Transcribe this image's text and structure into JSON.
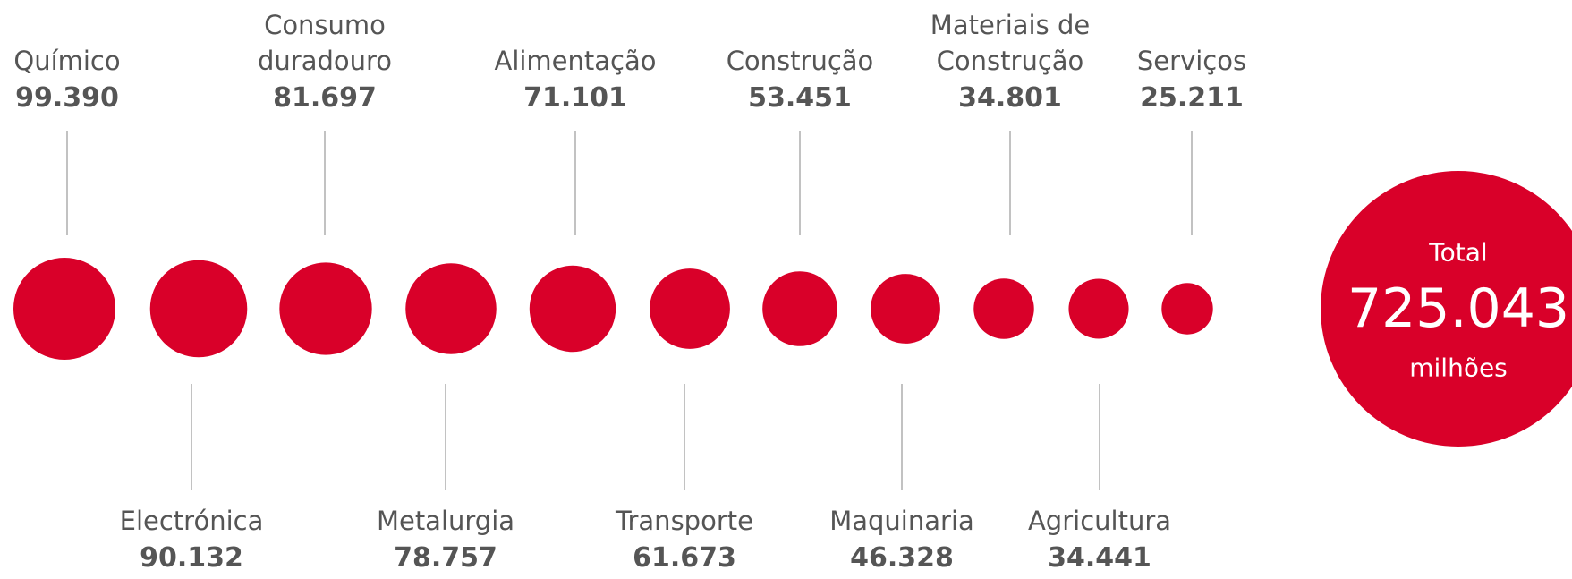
{
  "chart_data": {
    "type": "bubble",
    "categories": [
      "Químico",
      "Electrónica",
      "Consumo\nduradouro",
      "Metalurgia",
      "Alimentação",
      "Transporte",
      "Construção",
      "Maquinaria",
      "Materiais de\nConstrução",
      "Agricultura",
      "Serviços"
    ],
    "values": [
      99390,
      90132,
      81697,
      78757,
      71101,
      61673,
      53451,
      46328,
      34801,
      34441,
      25211
    ],
    "value_labels": [
      "99.390",
      "90.132",
      "81.697",
      "78.757",
      "71.101",
      "61.673",
      "53.451",
      "46.328",
      "34.801",
      "34.441",
      "25.211"
    ],
    "color": "#d90029",
    "total": {
      "label": "Total",
      "value": 725043,
      "value_label": "725.043",
      "unit": "milhões"
    }
  }
}
